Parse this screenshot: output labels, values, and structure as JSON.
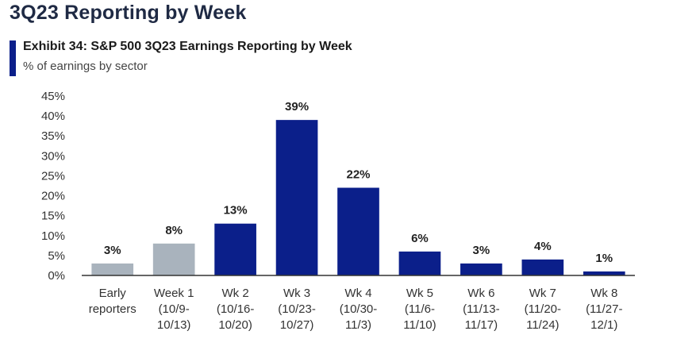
{
  "header": {
    "title": "3Q23 Reporting by Week",
    "exhibit_title": "Exhibit 34: S&P 500 3Q23 Earnings Reporting by Week",
    "subtitle": "% of earnings by sector"
  },
  "colors": {
    "accent": "#0b1f8a",
    "bar_primary": "#0b1f8a",
    "bar_secondary": "#a9b3bd",
    "axis": "#333333"
  },
  "chart_data": {
    "type": "bar",
    "title": "Exhibit 34: S&P 500 3Q23 Earnings Reporting by Week",
    "subtitle": "% of earnings by sector",
    "xlabel": "",
    "ylabel": "",
    "ylim": [
      0,
      45
    ],
    "yticks": [
      0,
      5,
      10,
      15,
      20,
      25,
      30,
      35,
      40,
      45
    ],
    "ytick_labels": [
      "0%",
      "5%",
      "10%",
      "15%",
      "20%",
      "25%",
      "30%",
      "35%",
      "40%",
      "45%"
    ],
    "grid": false,
    "legend": "none",
    "categories": [
      [
        "Early",
        "reporters"
      ],
      [
        "Week 1",
        "(10/9-",
        "10/13)"
      ],
      [
        "Wk 2",
        "(10/16-",
        "10/20)"
      ],
      [
        "Wk 3",
        "(10/23-",
        "10/27)"
      ],
      [
        "Wk 4",
        "(10/30-",
        "11/3)"
      ],
      [
        "Wk 5",
        "(11/6-",
        "11/10)"
      ],
      [
        "Wk 6",
        "(11/13-",
        "11/17)"
      ],
      [
        "Wk 7",
        "(11/20-",
        "11/24)"
      ],
      [
        "Wk 8",
        "(11/27-",
        "12/1)"
      ]
    ],
    "values": [
      3,
      8,
      13,
      39,
      22,
      6,
      3,
      4,
      1
    ],
    "data_labels": [
      "3%",
      "8%",
      "13%",
      "39%",
      "22%",
      "6%",
      "3%",
      "4%",
      "1%"
    ],
    "bar_colors": [
      "#a9b3bd",
      "#a9b3bd",
      "#0b1f8a",
      "#0b1f8a",
      "#0b1f8a",
      "#0b1f8a",
      "#0b1f8a",
      "#0b1f8a",
      "#0b1f8a"
    ]
  }
}
